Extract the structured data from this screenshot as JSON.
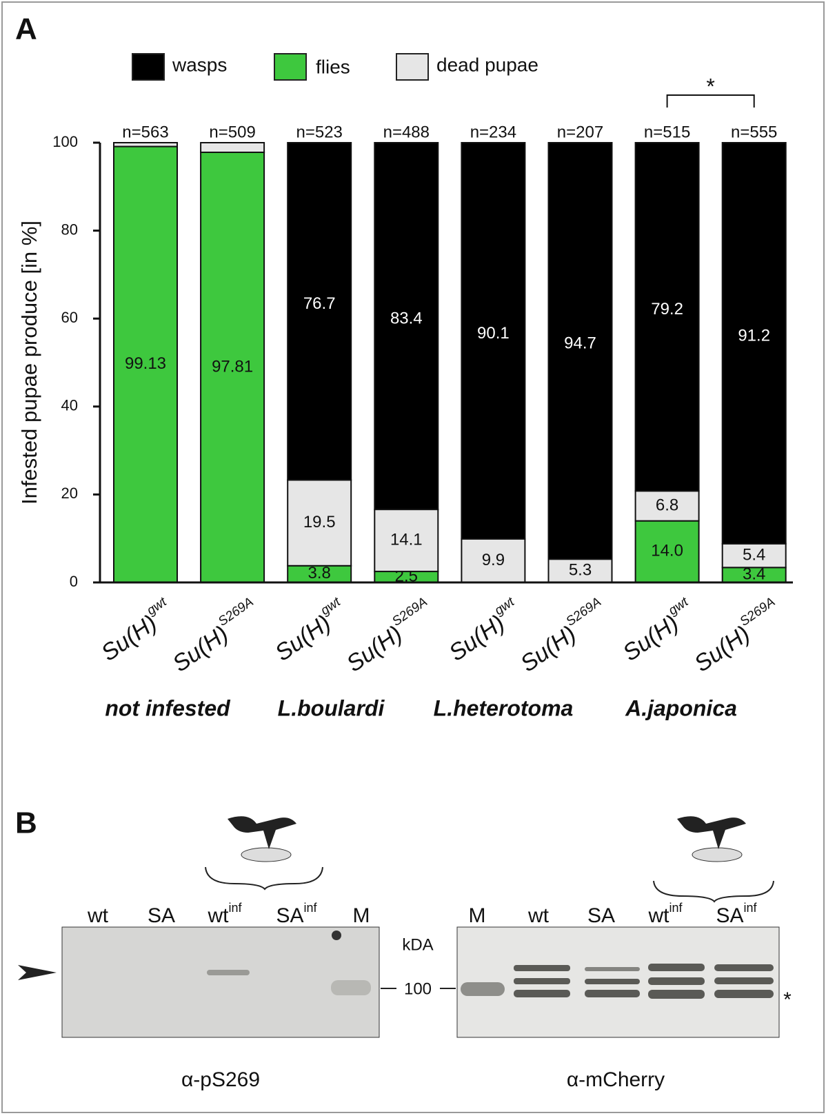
{
  "panel_labels": [
    "A",
    "B"
  ],
  "chart_data": {
    "type": "stacked-bar",
    "y_label": "Infested pupae produce [in %]",
    "categories": [
      {
        "text": "Su(H)",
        "sup": "gwt"
      },
      {
        "text": "Su(H)",
        "sup": "S269A"
      },
      {
        "text": "Su(H)",
        "sup": "gwt"
      },
      {
        "text": "Su(H)",
        "sup": "S269A"
      },
      {
        "text": "Su(H)",
        "sup": "gwt"
      },
      {
        "text": "Su(H)",
        "sup": "S269A"
      },
      {
        "text": "Su(H)",
        "sup": "gwt"
      },
      {
        "text": "Su(H)",
        "sup": "S269A"
      }
    ],
    "groups": [
      "not infested",
      "L.boulardi",
      "L.heterotoma",
      "A.japonica"
    ],
    "n_labels": [
      "n=563",
      "n=509",
      "n=523",
      "n=488",
      "n=234",
      "n=207",
      "n=515",
      "n=555"
    ],
    "significance": "*",
    "series": [
      {
        "name": "wasps",
        "color": "#000000",
        "values": [
          0,
          0,
          76.7,
          83.4,
          90.1,
          94.7,
          79.2,
          91.2
        ],
        "value_labels": [
          null,
          null,
          "76.7",
          "83.4",
          "90.1",
          "94.7",
          "79.2",
          "91.2"
        ]
      },
      {
        "name": "flies",
        "color": "#3ec83e",
        "values": [
          99.13,
          97.81,
          3.8,
          2.5,
          0,
          0,
          14.0,
          3.4
        ],
        "value_labels": [
          "99.13",
          "97.81",
          "3.8",
          "2.5",
          null,
          null,
          "14.0",
          "3.4"
        ]
      },
      {
        "name": "dead pupae",
        "color": "#e6e6e6",
        "values": [
          0.87,
          2.19,
          19.5,
          14.1,
          9.9,
          5.3,
          6.8,
          5.4
        ],
        "value_labels": [
          null,
          null,
          "19.5",
          "14.1",
          "9.9",
          "5.3",
          "6.8",
          "5.4"
        ]
      }
    ],
    "ylim": [
      0,
      100
    ],
    "yticks": [
      0,
      20,
      40,
      60,
      80,
      100
    ]
  },
  "panel_b": {
    "blots": [
      {
        "lanes": [
          {
            "text": "wt"
          },
          {
            "text": "SA"
          },
          {
            "text": "wt",
            "sup": "inf"
          },
          {
            "text": "SA",
            "sup": "inf"
          },
          {
            "text": "M"
          }
        ],
        "antibody": "α-pS269"
      },
      {
        "lanes": [
          {
            "text": "M"
          },
          {
            "text": "wt"
          },
          {
            "text": "SA"
          },
          {
            "text": "wt",
            "sup": "inf"
          },
          {
            "text": "SA",
            "sup": "inf"
          }
        ],
        "antibody": "α-mCherry"
      }
    ],
    "marker_unit": "kDA",
    "marker": 100,
    "band_note": "*"
  }
}
